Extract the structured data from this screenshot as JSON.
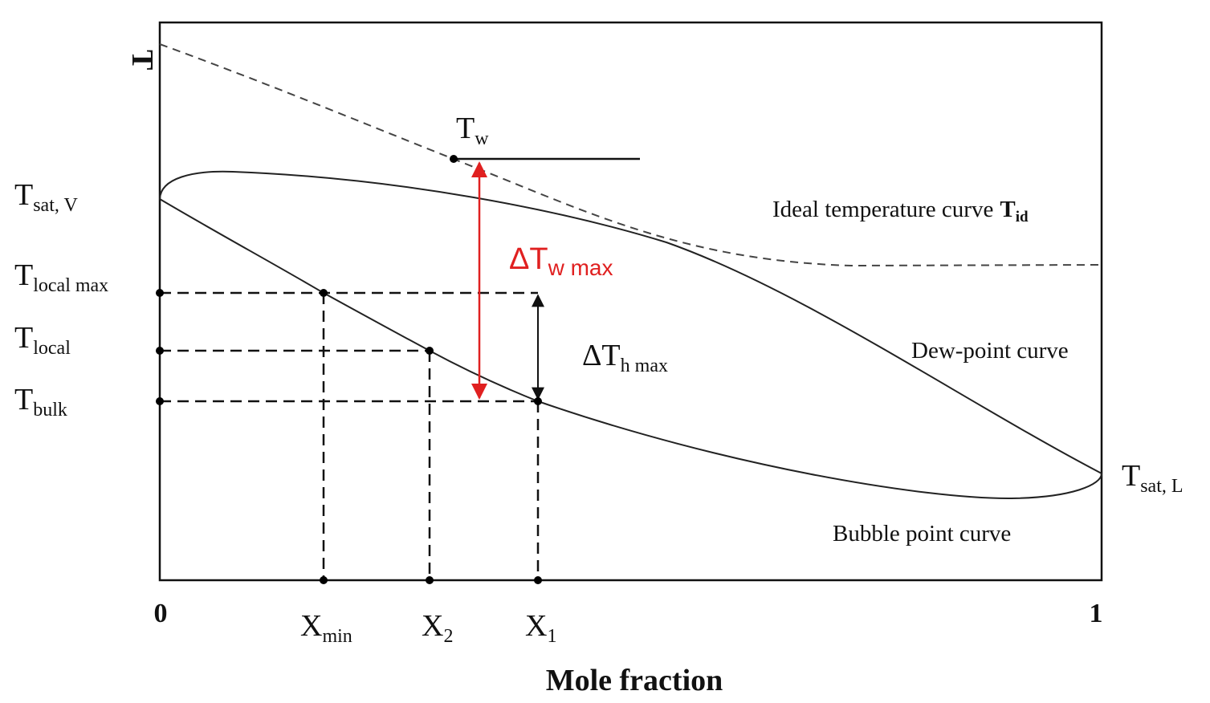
{
  "axes": {
    "y_label": "T",
    "x_label": "Mole fraction",
    "x_start": "0",
    "x_end": "1"
  },
  "left_labels": [
    {
      "main": "T",
      "sub": "sat, V"
    },
    {
      "main": "T",
      "sub": "local max"
    },
    {
      "main": "T",
      "sub": "local"
    },
    {
      "main": "T",
      "sub": "bulk"
    }
  ],
  "right_label": {
    "main": "T",
    "sub": "sat, L"
  },
  "x_labels": [
    {
      "main": "X",
      "sub": "min"
    },
    {
      "main": "X",
      "sub": "2"
    },
    {
      "main": "X",
      "sub": "1"
    }
  ],
  "wall_label": {
    "main": "T",
    "sub": "w"
  },
  "delta_w": {
    "main": "ΔT",
    "sub": "w max"
  },
  "delta_h": {
    "main": "ΔT",
    "sub": "h max"
  },
  "curve_labels": {
    "ideal": {
      "text": "Ideal temperature curve",
      "main": "T",
      "sub": "id"
    },
    "dew": "Dew-point curve",
    "bubble": "Bubble point curve"
  }
}
